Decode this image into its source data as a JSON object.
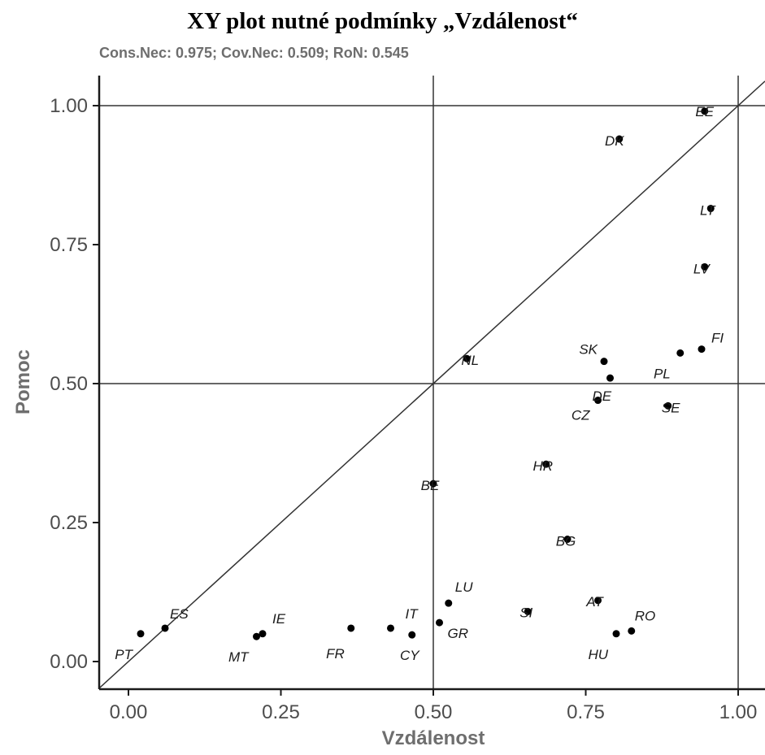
{
  "chart_data": {
    "type": "scatter",
    "title": "XY plot nutné podmínky „Vzdálenost“",
    "subtitle": "Cons.Nec: 0.975; Cov.Nec: 0.509; RoN: 0.545",
    "xlabel": "Vzdálenost",
    "ylabel": "Pomoc",
    "xlim": [
      -0.045,
      1.05
    ],
    "ylim": [
      -0.045,
      1.05
    ],
    "xticks": [
      "0.00",
      "0.25",
      "0.50",
      "0.75",
      "1.00"
    ],
    "yticks": [
      "0.00",
      "0.25",
      "0.50",
      "0.75",
      "1.00"
    ],
    "reference_lines": {
      "vertical": [
        0.5,
        1.0
      ],
      "horizontal": [
        0.5,
        1.0
      ],
      "diagonal": true
    },
    "grid": false,
    "points": [
      {
        "label": "EE",
        "x": 0.945,
        "y": 0.99
      },
      {
        "label": "DK",
        "x": 0.805,
        "y": 0.94
      },
      {
        "label": "LT",
        "x": 0.955,
        "y": 0.815
      },
      {
        "label": "LV",
        "x": 0.945,
        "y": 0.71
      },
      {
        "label": "FI",
        "x": 0.94,
        "y": 0.562
      },
      {
        "label": "PL",
        "x": 0.905,
        "y": 0.555
      },
      {
        "label": "SK",
        "x": 0.78,
        "y": 0.54
      },
      {
        "label": "NL",
        "x": 0.555,
        "y": 0.545
      },
      {
        "label": "DE",
        "x": 0.79,
        "y": 0.51
      },
      {
        "label": "CZ",
        "x": 0.77,
        "y": 0.47
      },
      {
        "label": "SE",
        "x": 0.885,
        "y": 0.46
      },
      {
        "label": "HR",
        "x": 0.685,
        "y": 0.355
      },
      {
        "label": "BE",
        "x": 0.5,
        "y": 0.32
      },
      {
        "label": "BG",
        "x": 0.72,
        "y": 0.22
      },
      {
        "label": "LU",
        "x": 0.525,
        "y": 0.105
      },
      {
        "label": "AT",
        "x": 0.77,
        "y": 0.11
      },
      {
        "label": "SI",
        "x": 0.655,
        "y": 0.09
      },
      {
        "label": "GR",
        "x": 0.51,
        "y": 0.07
      },
      {
        "label": "RO",
        "x": 0.825,
        "y": 0.055
      },
      {
        "label": "HU",
        "x": 0.8,
        "y": 0.05
      },
      {
        "label": "ES",
        "x": 0.06,
        "y": 0.06
      },
      {
        "label": "PT",
        "x": 0.02,
        "y": 0.05
      },
      {
        "label": "IE",
        "x": 0.22,
        "y": 0.05
      },
      {
        "label": "MT",
        "x": 0.21,
        "y": 0.045
      },
      {
        "label": "IT",
        "x": 0.43,
        "y": 0.06
      },
      {
        "label": "FR",
        "x": 0.365,
        "y": 0.06
      },
      {
        "label": "CY",
        "x": 0.465,
        "y": 0.048
      }
    ]
  }
}
